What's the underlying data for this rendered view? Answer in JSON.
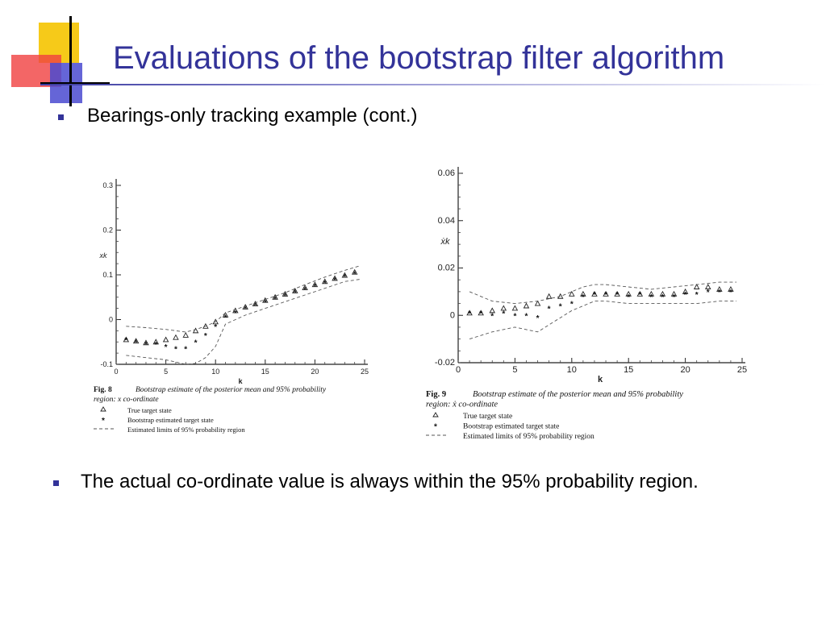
{
  "title": "Evaluations of the bootstrap filter algorithm",
  "bullets": [
    "Bearings-only tracking example (cont.)",
    "The actual co-ordinate value is always within the 95% probability region."
  ],
  "colors": {
    "title": "#333399",
    "bullet": "#333399",
    "deco_yellow": "#f5c400",
    "deco_red": "#f04040",
    "deco_blue": "#4a4ad0"
  },
  "chart_data": [
    {
      "type": "scatter",
      "figure_label": "Fig. 8",
      "caption": "Bootstrap estimate of the posterior mean and 95% probability region: x co-ordinate",
      "xlabel": "k",
      "ylabel": "x_k",
      "xlim": [
        0,
        25
      ],
      "ylim": [
        -0.1,
        0.3
      ],
      "xticks": [
        "0",
        "5",
        "10",
        "15",
        "20",
        "25"
      ],
      "yticks": [
        "-0.1",
        "0",
        "0.1",
        "0.2",
        "0.3"
      ],
      "legend": [
        "True target state",
        "Bootstrap estimated target state",
        "Estimated limits of 95% probability region"
      ],
      "series": [
        {
          "name": "True target state",
          "marker": "triangle",
          "x": [
            1,
            2,
            3,
            4,
            5,
            6,
            7,
            8,
            9,
            10,
            11,
            12,
            13,
            14,
            15,
            16,
            17,
            18,
            19,
            20,
            21,
            22,
            23,
            24
          ],
          "y": [
            -0.045,
            -0.048,
            -0.052,
            -0.05,
            -0.045,
            -0.04,
            -0.035,
            -0.025,
            -0.015,
            -0.005,
            0.01,
            0.02,
            0.028,
            0.035,
            0.043,
            0.05,
            0.057,
            0.064,
            0.071,
            0.078,
            0.085,
            0.092,
            0.099,
            0.106
          ]
        },
        {
          "name": "Bootstrap estimated target state",
          "marker": "star",
          "x": [
            1,
            2,
            3,
            4,
            5,
            6,
            7,
            8,
            9,
            10,
            11,
            12,
            13,
            14,
            15,
            16,
            17,
            18,
            19,
            20,
            21,
            22,
            23,
            24
          ],
          "y": [
            -0.045,
            -0.05,
            -0.055,
            -0.055,
            -0.06,
            -0.065,
            -0.065,
            -0.05,
            -0.035,
            -0.015,
            0.005,
            0.015,
            0.025,
            0.032,
            0.04,
            0.047,
            0.054,
            0.061,
            0.068,
            0.075,
            0.082,
            0.089,
            0.096,
            0.103
          ]
        },
        {
          "name": "Upper limit",
          "style": "dashed",
          "x": [
            1,
            3,
            5,
            7,
            8,
            9,
            10,
            11,
            13,
            15,
            17,
            19,
            21,
            23,
            24.5
          ],
          "y": [
            -0.015,
            -0.018,
            -0.022,
            -0.028,
            -0.022,
            -0.015,
            -0.005,
            0.015,
            0.03,
            0.045,
            0.06,
            0.078,
            0.095,
            0.11,
            0.12
          ]
        },
        {
          "name": "Lower limit",
          "style": "dashed",
          "x": [
            1,
            3,
            5,
            6,
            7,
            8,
            9,
            10,
            11,
            13,
            15,
            17,
            19,
            21,
            23,
            24.5
          ],
          "y": [
            -0.08,
            -0.085,
            -0.09,
            -0.095,
            -0.1,
            -0.098,
            -0.085,
            -0.06,
            -0.01,
            0.01,
            0.025,
            0.04,
            0.055,
            0.07,
            0.085,
            0.09
          ]
        }
      ]
    },
    {
      "type": "scatter",
      "figure_label": "Fig. 9",
      "caption": "Bootstrap estimate of the posterior mean and 95% probability region: ẋ co-ordinate",
      "xlabel": "k",
      "ylabel": "ẋ_k",
      "xlim": [
        0,
        25
      ],
      "ylim": [
        -0.02,
        0.06
      ],
      "xticks": [
        "0",
        "5",
        "10",
        "15",
        "20",
        "25"
      ],
      "yticks": [
        "-0.02",
        "0",
        "0.02",
        "0.04",
        "0.06"
      ],
      "legend": [
        "True target state",
        "Bootstrap estimated target state",
        "Estimated limits of 95% probability region"
      ],
      "series": [
        {
          "name": "True target state",
          "marker": "triangle",
          "x": [
            1,
            2,
            3,
            4,
            5,
            6,
            7,
            8,
            9,
            10,
            11,
            12,
            13,
            14,
            15,
            16,
            17,
            18,
            19,
            20,
            21,
            22,
            23,
            24
          ],
          "y": [
            0.001,
            0.001,
            0.002,
            0.003,
            0.003,
            0.004,
            0.005,
            0.008,
            0.008,
            0.009,
            0.009,
            0.009,
            0.009,
            0.009,
            0.009,
            0.009,
            0.009,
            0.009,
            0.009,
            0.01,
            0.012,
            0.012,
            0.011,
            0.011
          ]
        },
        {
          "name": "Bootstrap estimated target state",
          "marker": "star",
          "x": [
            1,
            2,
            3,
            4,
            5,
            6,
            7,
            8,
            9,
            10,
            11,
            12,
            13,
            14,
            15,
            16,
            17,
            18,
            19,
            20,
            21,
            22,
            23,
            24
          ],
          "y": [
            0.001,
            0.001,
            0.0,
            0.001,
            0.0,
            0.0,
            -0.001,
            0.003,
            0.004,
            0.005,
            0.008,
            0.009,
            0.009,
            0.009,
            0.008,
            0.009,
            0.008,
            0.008,
            0.008,
            0.009,
            0.009,
            0.01,
            0.01,
            0.01
          ]
        },
        {
          "name": "Upper limit",
          "style": "dashed",
          "x": [
            1,
            2,
            3,
            5,
            7,
            8,
            9,
            10,
            11,
            12,
            13,
            15,
            17,
            19,
            21,
            23,
            24.5
          ],
          "y": [
            0.01,
            0.008,
            0.006,
            0.005,
            0.006,
            0.007,
            0.008,
            0.01,
            0.012,
            0.013,
            0.013,
            0.012,
            0.011,
            0.012,
            0.013,
            0.014,
            0.014
          ]
        },
        {
          "name": "Lower limit",
          "style": "dashed",
          "x": [
            1,
            3,
            5,
            6,
            7,
            8,
            9,
            10,
            11,
            12,
            13,
            15,
            17,
            19,
            21,
            23,
            24.5
          ],
          "y": [
            -0.01,
            -0.007,
            -0.005,
            -0.006,
            -0.007,
            -0.004,
            -0.001,
            0.002,
            0.004,
            0.006,
            0.006,
            0.005,
            0.005,
            0.005,
            0.005,
            0.006,
            0.006
          ]
        }
      ]
    }
  ]
}
